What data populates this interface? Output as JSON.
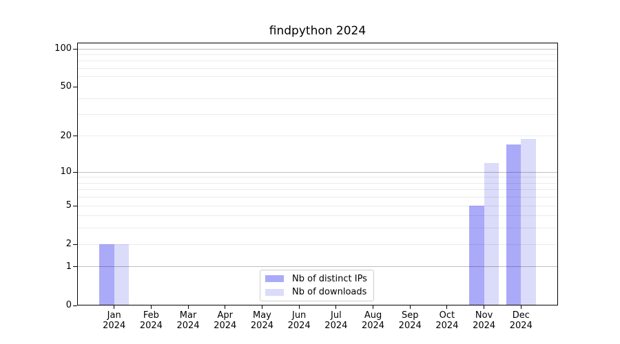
{
  "title": "findpython 2024",
  "chart_data": {
    "type": "bar",
    "title": "findpython 2024",
    "categories": [
      "Jan 2024",
      "Feb 2024",
      "Mar 2024",
      "Apr 2024",
      "May 2024",
      "Jun 2024",
      "Jul 2024",
      "Aug 2024",
      "Sep 2024",
      "Oct 2024",
      "Nov 2024",
      "Dec 2024"
    ],
    "xtick_months": [
      "Jan",
      "Feb",
      "Mar",
      "Apr",
      "May",
      "Jun",
      "Jul",
      "Aug",
      "Sep",
      "Oct",
      "Nov",
      "Dec"
    ],
    "xtick_year": "2024",
    "series": [
      {
        "name": "Nb of distinct IPs",
        "color": "#aaaaf8",
        "values": [
          2,
          0,
          0,
          0,
          0,
          0,
          0,
          0,
          0,
          0,
          5,
          17
        ]
      },
      {
        "name": "Nb of downloads",
        "color": "#dbdbfa",
        "values": [
          2,
          0,
          0,
          0,
          0,
          0,
          0,
          0,
          0,
          0,
          12,
          19
        ]
      }
    ],
    "xlabel": "",
    "ylabel": "",
    "yscale": "log1p",
    "ylim": [
      0,
      112
    ],
    "ytick_values": [
      0,
      1,
      2,
      5,
      10,
      20,
      50,
      100
    ],
    "ytick_labels": [
      "0",
      "1",
      "2",
      "5",
      "10",
      "20",
      "50",
      "100"
    ],
    "major_gridlines": [
      1,
      10,
      100
    ],
    "minor_gridlines": [
      2,
      3,
      4,
      5,
      6,
      7,
      8,
      9,
      20,
      30,
      40,
      60,
      70,
      80,
      90
    ],
    "grid": true,
    "legend_position": "lower center"
  }
}
